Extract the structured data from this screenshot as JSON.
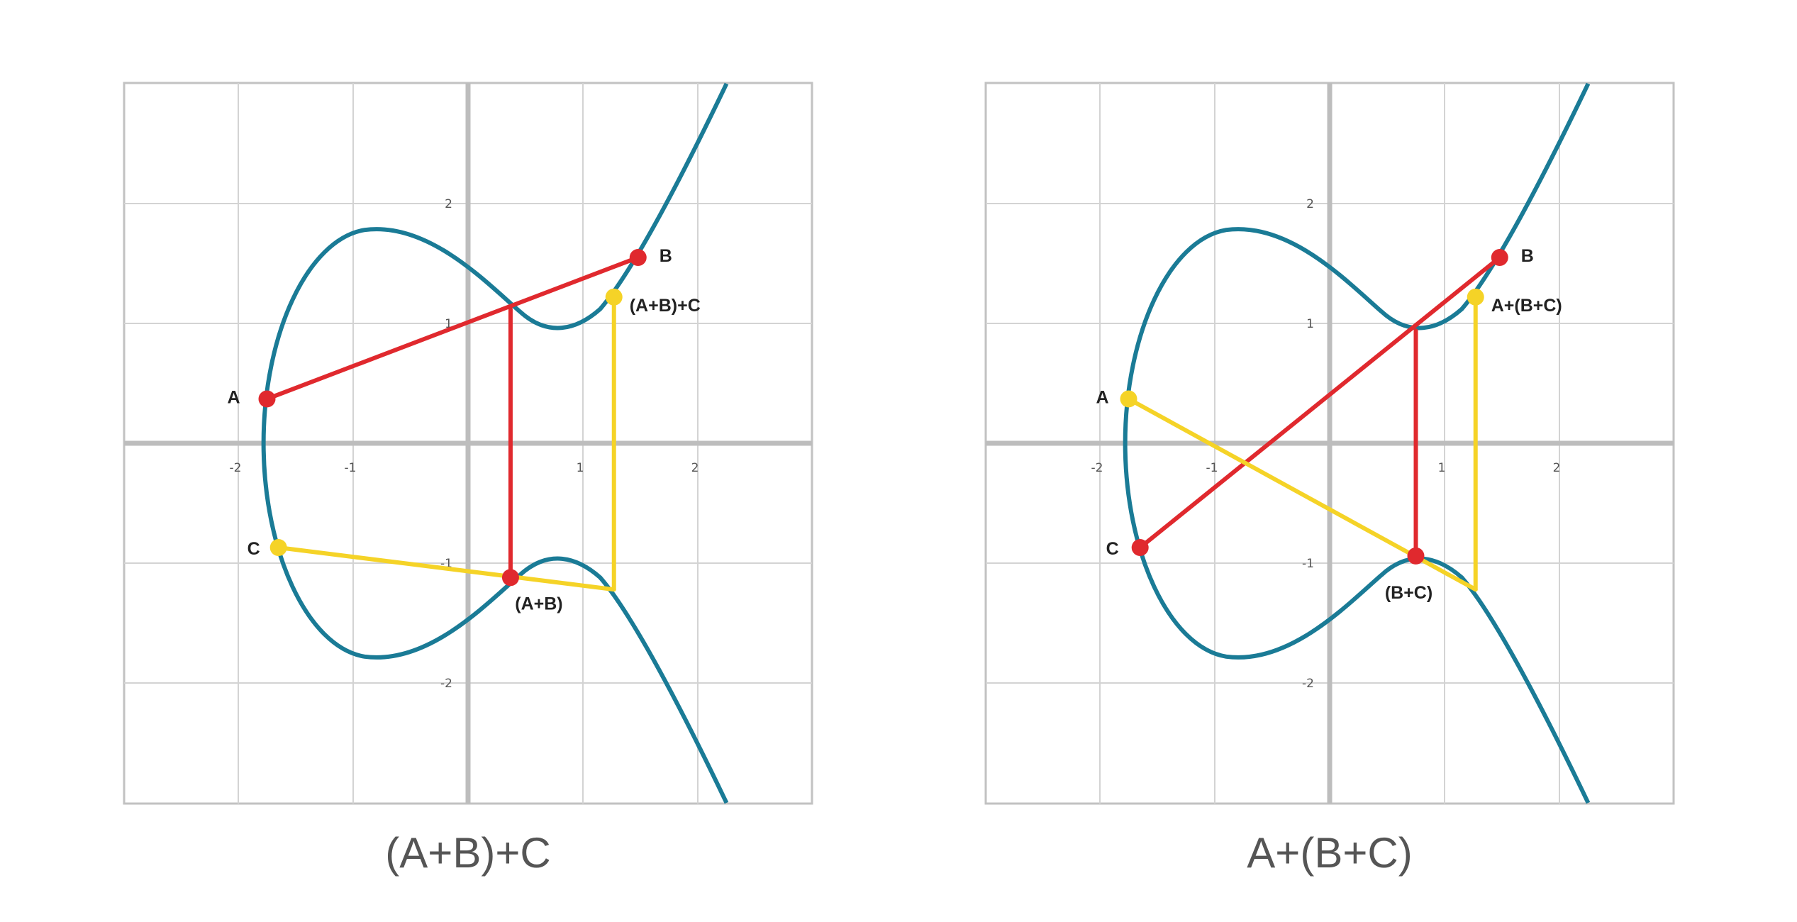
{
  "colors": {
    "curve": "#1a7b96",
    "red": "#e0292e",
    "yellow": "#f5d327",
    "grid": "#d3d3d3",
    "axis": "#bdbdbd",
    "frame": "#c2c2c2"
  },
  "axis_ticks": {
    "x": [
      "-2",
      "-1",
      "1",
      "2"
    ],
    "y": [
      "2",
      "1",
      "-1",
      "-2"
    ]
  },
  "panels": [
    {
      "caption": "(A+B)+C",
      "points": [
        {
          "label": "A",
          "x": -1.75,
          "y": 0.37,
          "color": "red"
        },
        {
          "label": "B",
          "x": 1.48,
          "y": 1.55,
          "color": "red"
        },
        {
          "label": "(A+B)",
          "x": 0.37,
          "y": -1.12,
          "color": "red"
        },
        {
          "label": "C",
          "x": -1.65,
          "y": -0.87,
          "color": "yellow"
        },
        {
          "label": "(A+B)+C",
          "x": 1.27,
          "y": 1.22,
          "color": "yellow"
        }
      ]
    },
    {
      "caption": "A+(B+C)",
      "points": [
        {
          "label": "A",
          "x": -1.75,
          "y": 0.37,
          "color": "yellow"
        },
        {
          "label": "B",
          "x": 1.48,
          "y": 1.55,
          "color": "red"
        },
        {
          "label": "C",
          "x": -1.65,
          "y": -0.87,
          "color": "red"
        },
        {
          "label": "(B+C)",
          "x": 0.75,
          "y": -0.94,
          "color": "red"
        },
        {
          "label": "A+(B+C)",
          "x": 1.27,
          "y": 1.22,
          "color": "yellow"
        }
      ]
    }
  ]
}
